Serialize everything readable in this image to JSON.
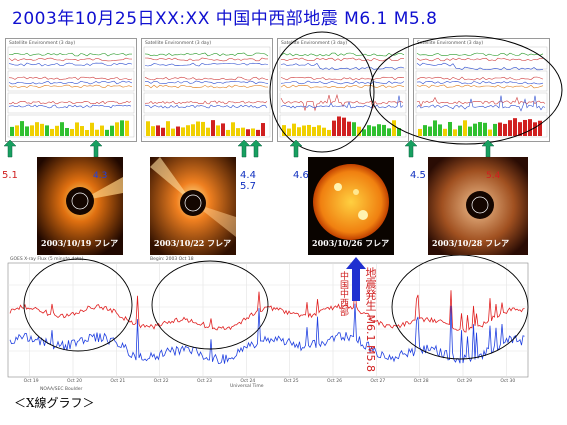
{
  "title": "2003年10月25日XX:XX  中国中西部地震  M6.1  M5.8",
  "goes_panels": [
    {
      "id": "p1",
      "header": "Satellite Environment (3 day)"
    },
    {
      "id": "p2",
      "header": "Satellite Environment (3 day)"
    },
    {
      "id": "p3",
      "header": "Satellite Environment (3 day)"
    },
    {
      "id": "p4",
      "header": "Satellite Environment (3 day)"
    }
  ],
  "sun_images": [
    {
      "label": "2003/10/19  フレア",
      "side_text": "5.1",
      "side_color": "#d02020",
      "inner_text": "4.3"
    },
    {
      "label": "2003/10/22  フレア",
      "side_text": "4.4 5.7",
      "side_color": "#1030c0"
    },
    {
      "label": "2003/10/26  フレア",
      "side_text": "4.5",
      "side_color": "#1030c0",
      "arrow_left": "4.6"
    },
    {
      "label": "2003/10/28  フレア",
      "side_text": "5.4",
      "side_color": "#d02020"
    }
  ],
  "xray": {
    "header": "GOES X-ray Flux (5 minute data)",
    "begin_text": "Begin: 2003 Oct 18",
    "annotation": "地震発生  M6.1 M5.8",
    "annotation_sub": "中国中西部",
    "footer_left": "NOAA/SEC Boulder",
    "footer_mid": "Universal Time",
    "ticks": [
      "Oct 19",
      "Oct 20",
      "Oct 21",
      "Oct 22",
      "Oct 23",
      "Oct 24",
      "Oct 25",
      "Oct 26",
      "Oct 27",
      "Oct 28",
      "Oct 29",
      "Oct 30"
    ]
  },
  "caption": "＜X線グラフ＞",
  "colors": {
    "title": "#1010d0",
    "arrow": "#18a060",
    "quake_arrow": "#2030d0",
    "xray_long": "#e02020",
    "xray_short": "#2040e0"
  }
}
